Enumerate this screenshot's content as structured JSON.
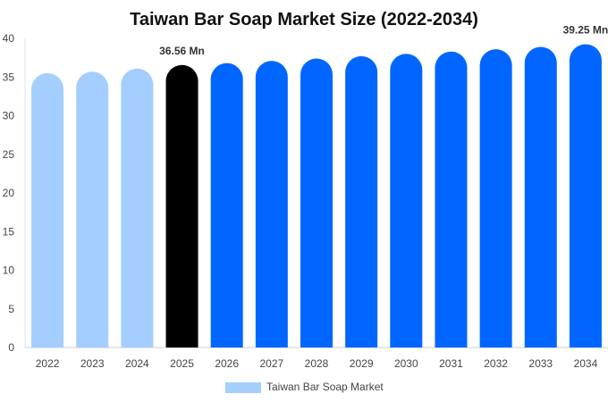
{
  "chart_data": {
    "type": "bar",
    "title": "Taiwan Bar Soap Market Size (2022-2034)",
    "categories": [
      "2022",
      "2023",
      "2024",
      "2025",
      "2026",
      "2027",
      "2028",
      "2029",
      "2030",
      "2031",
      "2032",
      "2033",
      "2034"
    ],
    "series": [
      {
        "name": "Taiwan Bar Soap Market",
        "values": [
          35.5,
          35.7,
          36.1,
          36.56,
          36.8,
          37.1,
          37.4,
          37.7,
          38.0,
          38.3,
          38.6,
          38.9,
          39.25
        ]
      }
    ],
    "bar_colors": [
      "#a3cefe",
      "#a3cefe",
      "#a3cefe",
      "#000000",
      "#0066ff",
      "#0066ff",
      "#0066ff",
      "#0066ff",
      "#0066ff",
      "#0066ff",
      "#0066ff",
      "#0066ff",
      "#0066ff"
    ],
    "data_labels": [
      {
        "index": 3,
        "text": "36.56 Mn"
      },
      {
        "index": 12,
        "text": "39.25 Mn"
      }
    ],
    "ylim": [
      0,
      40
    ],
    "y_ticks": [
      0,
      5,
      10,
      15,
      20,
      25,
      30,
      35,
      40
    ],
    "grid": false,
    "legend_position": "bottom-center",
    "legend_color": "#a3cefe"
  }
}
